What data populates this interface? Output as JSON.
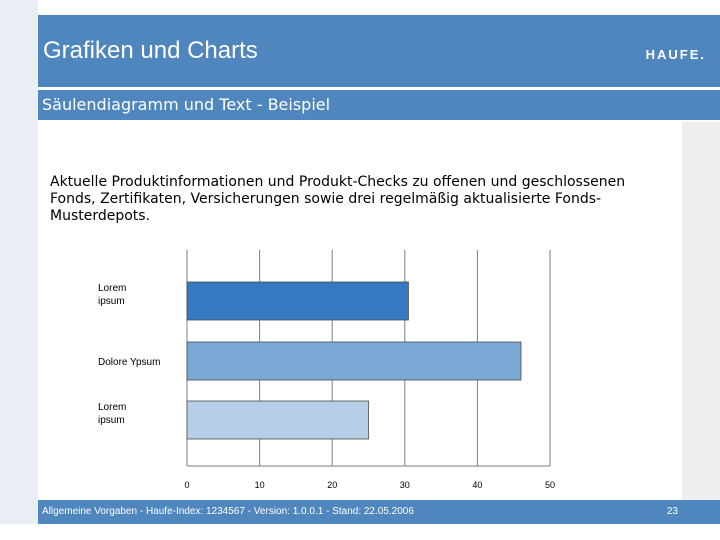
{
  "header": {
    "title": "Grafiken und Charts",
    "logo": "HAUFE."
  },
  "subheader": {
    "title": "Säulendiagramm und Text - Beispiel"
  },
  "content": {
    "intro": "Aktuelle Produktinformationen und Produkt-Checks zu offenen und geschlossenen Fonds, Zertifikaten, Versicherungen sowie drei regelmäßig aktualisierte Fonds-Musterdepots."
  },
  "footer": {
    "text": "Allgemeine Vorgaben - Haufe-Index: 1234567 - Version: 1.0.0.1 - Stand: 22.05.2006",
    "page": "23"
  },
  "colors": {
    "header": "#4f86bd",
    "bar1": "#3479c1",
    "bar2": "#7aa9d6",
    "bar3": "#b4cfe6"
  },
  "chart_data": {
    "type": "bar",
    "orientation": "horizontal",
    "categories": [
      "Lorem ipsum",
      "Dolore Ypsum",
      "Lorem ipsum"
    ],
    "values": [
      30.5,
      46,
      25
    ],
    "xticks": [
      "0",
      "10",
      "20",
      "30",
      "40",
      "50"
    ],
    "xlim": [
      0,
      50
    ],
    "grid": true,
    "title": "",
    "xlabel": "",
    "ylabel": ""
  }
}
